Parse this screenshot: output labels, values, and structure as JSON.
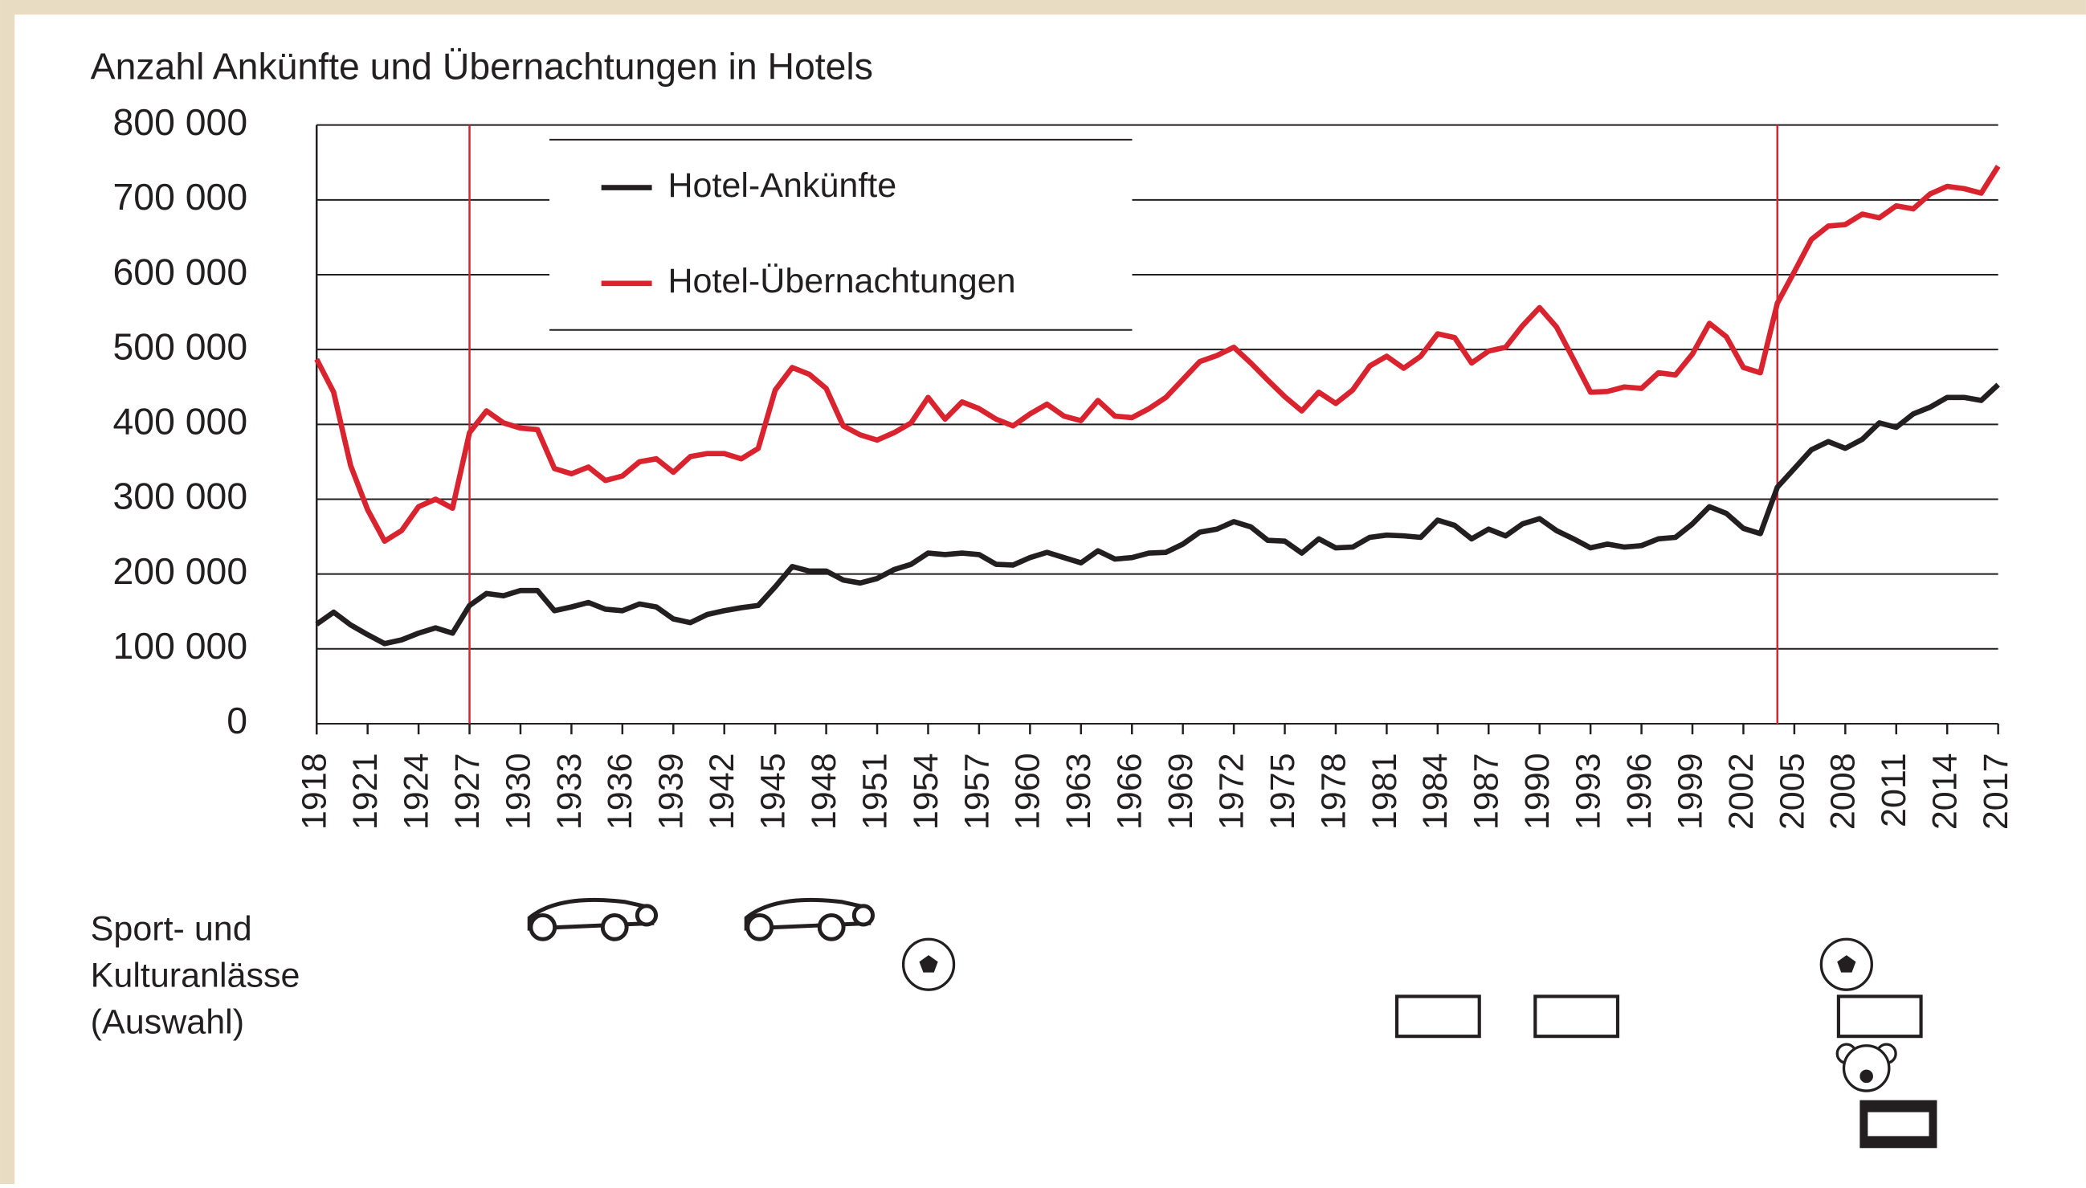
{
  "chart_data": {
    "type": "line",
    "title": "Anzahl Ankünfte und Übernachtungen in Hotels",
    "annotation": [
      "Sport- und",
      "Kulturanlässe",
      "(Auswahl)"
    ],
    "x": [
      1918,
      1919,
      1920,
      1921,
      1922,
      1923,
      1924,
      1925,
      1926,
      1927,
      1928,
      1929,
      1930,
      1931,
      1932,
      1933,
      1934,
      1935,
      1936,
      1937,
      1938,
      1939,
      1940,
      1941,
      1942,
      1943,
      1944,
      1945,
      1946,
      1947,
      1948,
      1949,
      1950,
      1951,
      1952,
      1953,
      1954,
      1955,
      1956,
      1957,
      1958,
      1959,
      1960,
      1961,
      1962,
      1963,
      1964,
      1965,
      1966,
      1967,
      1968,
      1969,
      1970,
      1971,
      1972,
      1973,
      1974,
      1975,
      1976,
      1977,
      1978,
      1979,
      1980,
      1981,
      1982,
      1983,
      1984,
      1985,
      1986,
      1987,
      1988,
      1989,
      1990,
      1991,
      1992,
      1993,
      1994,
      1995,
      1996,
      1997,
      1998,
      1999,
      2000,
      2001,
      2002,
      2003,
      2004,
      2005,
      2006,
      2007,
      2008,
      2009,
      2010,
      2011,
      2012,
      2013,
      2014,
      2015,
      2016,
      2017
    ],
    "series": [
      {
        "name": "Hotel-Ankünfte",
        "color": "#231f20",
        "values": [
          133000,
          149000,
          132000,
          119000,
          107000,
          112000,
          121000,
          128000,
          121000,
          158000,
          174000,
          171000,
          178000,
          178000,
          151000,
          156000,
          162000,
          153000,
          151000,
          160000,
          156000,
          140000,
          135000,
          146000,
          151000,
          155000,
          158000,
          183000,
          210000,
          204000,
          204000,
          192000,
          188000,
          194000,
          206000,
          213000,
          228000,
          226000,
          228000,
          226000,
          213000,
          212000,
          222000,
          229000,
          222000,
          215000,
          231000,
          220000,
          222000,
          228000,
          229000,
          240000,
          256000,
          260000,
          270000,
          263000,
          245000,
          244000,
          228000,
          247000,
          235000,
          236000,
          249000,
          252000,
          251000,
          249000,
          272000,
          265000,
          247000,
          260000,
          251000,
          267000,
          274000,
          258000,
          247000,
          235000,
          240000,
          236000,
          238000,
          247000,
          249000,
          267000,
          290000,
          281000,
          261000,
          254000,
          316000,
          341000,
          366000,
          377000,
          368000,
          380000,
          402000,
          396000,
          414000,
          423000,
          436000,
          436000,
          432000,
          453000
        ]
      },
      {
        "name": "Hotel-Übernachtungen",
        "color": "#d9232e",
        "values": [
          487000,
          443000,
          345000,
          286000,
          244000,
          258000,
          290000,
          300000,
          288000,
          389000,
          418000,
          402000,
          395000,
          393000,
          341000,
          334000,
          343000,
          325000,
          331000,
          350000,
          354000,
          336000,
          357000,
          361000,
          361000,
          354000,
          368000,
          446000,
          476000,
          467000,
          448000,
          398000,
          386000,
          379000,
          389000,
          402000,
          436000,
          407000,
          430000,
          421000,
          407000,
          398000,
          414000,
          427000,
          411000,
          405000,
          432000,
          411000,
          409000,
          421000,
          436000,
          460000,
          484000,
          492000,
          503000,
          482000,
          459000,
          437000,
          418000,
          443000,
          428000,
          446000,
          478000,
          491000,
          475000,
          491000,
          521000,
          516000,
          482000,
          498000,
          503000,
          532000,
          556000,
          530000,
          487000,
          443000,
          444000,
          450000,
          448000,
          469000,
          466000,
          494000,
          535000,
          517000,
          476000,
          469000,
          562000,
          604000,
          647000,
          665000,
          667000,
          681000,
          676000,
          692000,
          688000,
          708000,
          718000,
          715000,
          709000,
          745000
        ]
      }
    ],
    "xlim": [
      1918,
      2017
    ],
    "xticks": [
      1918,
      1921,
      1924,
      1927,
      1930,
      1933,
      1936,
      1939,
      1942,
      1945,
      1948,
      1951,
      1954,
      1957,
      1960,
      1963,
      1966,
      1969,
      1972,
      1975,
      1978,
      1981,
      1984,
      1987,
      1990,
      1993,
      1996,
      1999,
      2002,
      2005,
      2008,
      2011,
      2014,
      2017
    ],
    "ylim": [
      0,
      800000
    ],
    "yticks": [
      0,
      {
        "value": 100000,
        "label": "100 000"
      },
      {
        "value": 200000,
        "label": "200 000"
      },
      {
        "value": 300000,
        "label": "300 000"
      },
      {
        "value": 400000,
        "label": "400 000"
      },
      {
        "value": 500000,
        "label": "500 000"
      },
      {
        "value": 600000,
        "label": "600 000"
      },
      {
        "value": 700000,
        "label": "700 000"
      },
      {
        "value": 800000,
        "label": "800 000"
      }
    ],
    "grid": true,
    "vlines": [
      1927,
      2004
    ],
    "vline_color": "#d9232e",
    "legend": "upper-left"
  }
}
